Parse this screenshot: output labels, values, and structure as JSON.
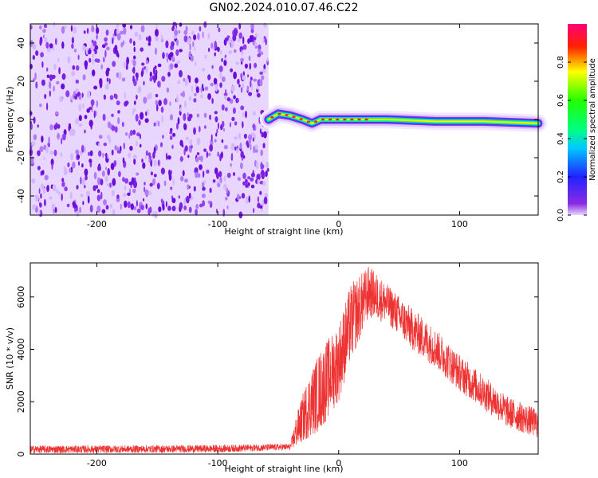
{
  "title": "GN02.2024.010.07.46.C22",
  "colors": {
    "snr_line": "#ee3333",
    "frame": "#000000"
  },
  "chart_data": [
    {
      "type": "heatmap",
      "xlabel": "Height of straight line (km)",
      "ylabel": "Frequency (Hz)",
      "xlim": [
        -255,
        165
      ],
      "ylim": [
        -50,
        50
      ],
      "xticks": [
        -200,
        -100,
        0,
        100
      ],
      "yticks": [
        -40,
        -20,
        0,
        20,
        40
      ],
      "colorbar": {
        "label": "Normalized spectral amplitude",
        "range": [
          0,
          1
        ],
        "ticks": [
          0.0,
          0.2,
          0.4,
          0.6,
          0.8
        ],
        "colormap": "rainbow",
        "low_color": "#e8d6ff"
      },
      "description_points": {
        "noise_region_x": [
          -255,
          -58
        ],
        "signal_track": [
          {
            "x": -58,
            "freq": 0
          },
          {
            "x": -50,
            "freq": 3
          },
          {
            "x": -40,
            "freq": 2
          },
          {
            "x": -30,
            "freq": 0
          },
          {
            "x": -22,
            "freq": -2
          },
          {
            "x": -15,
            "freq": 0
          },
          {
            "x": 0,
            "freq": 0
          },
          {
            "x": 40,
            "freq": 0
          },
          {
            "x": 80,
            "freq": -1
          },
          {
            "x": 120,
            "freq": -1
          },
          {
            "x": 165,
            "freq": -2
          }
        ]
      }
    },
    {
      "type": "line",
      "xlabel": "Height of straight line (km)",
      "ylabel": "SNR (10 * v/v)",
      "xlim": [
        -255,
        165
      ],
      "ylim": [
        0,
        7300
      ],
      "xticks": [
        -200,
        -100,
        0,
        100
      ],
      "yticks": [
        0,
        2000,
        4000,
        6000
      ],
      "envelope": [
        {
          "x": -255,
          "low": 30,
          "high": 330
        },
        {
          "x": -200,
          "low": 40,
          "high": 330
        },
        {
          "x": -100,
          "low": 60,
          "high": 350
        },
        {
          "x": -40,
          "low": 150,
          "high": 400
        },
        {
          "x": -35,
          "low": 250,
          "high": 1500
        },
        {
          "x": -25,
          "low": 600,
          "high": 3000
        },
        {
          "x": -15,
          "low": 900,
          "high": 4000
        },
        {
          "x": 0,
          "low": 2000,
          "high": 5000
        },
        {
          "x": 10,
          "low": 3500,
          "high": 6500
        },
        {
          "x": 25,
          "low": 5200,
          "high": 7200
        },
        {
          "x": 40,
          "low": 5000,
          "high": 6500
        },
        {
          "x": 60,
          "low": 4000,
          "high": 5600
        },
        {
          "x": 80,
          "low": 3300,
          "high": 4800
        },
        {
          "x": 100,
          "low": 2400,
          "high": 3800
        },
        {
          "x": 120,
          "low": 1700,
          "high": 3000
        },
        {
          "x": 140,
          "low": 1000,
          "high": 2200
        },
        {
          "x": 165,
          "low": 600,
          "high": 1700
        }
      ]
    }
  ]
}
